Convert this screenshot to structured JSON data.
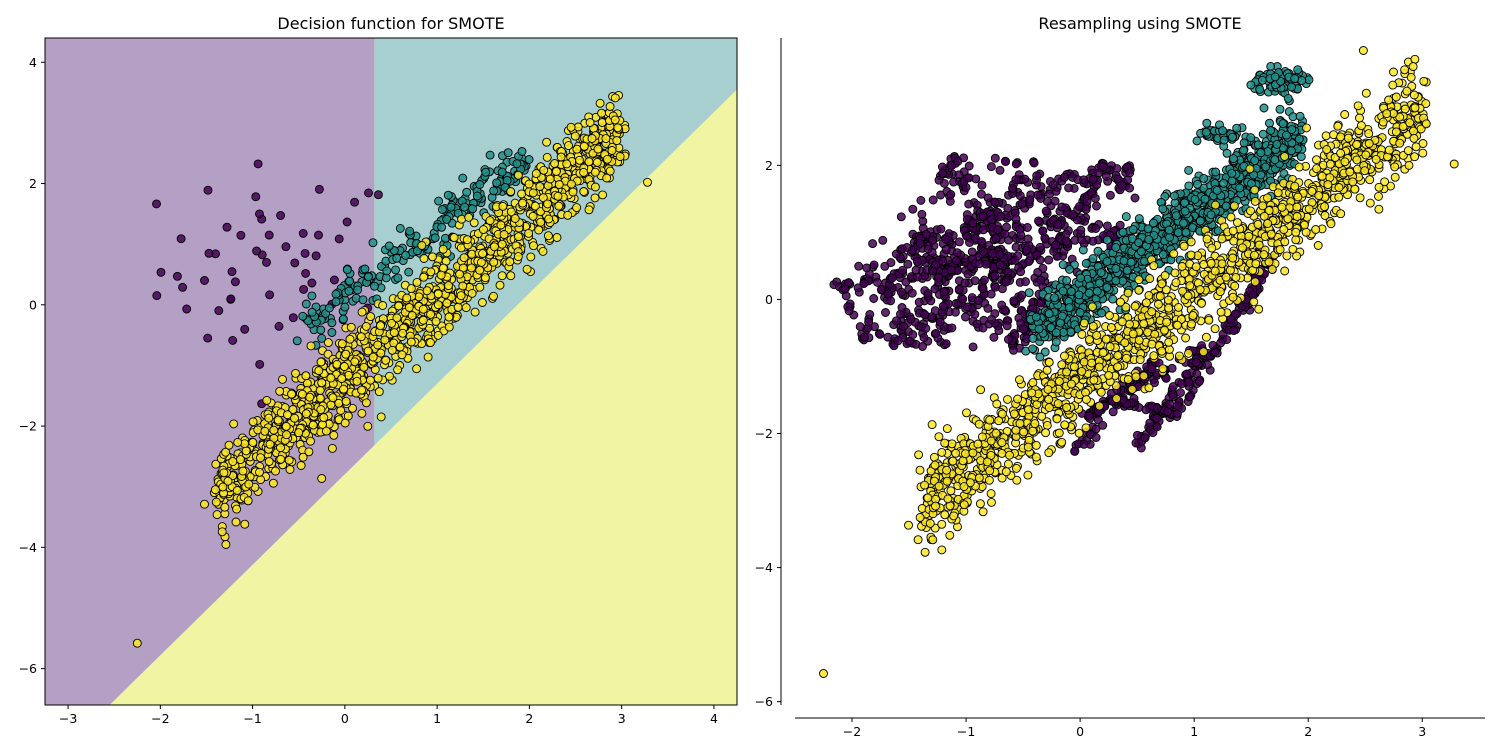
{
  "chart_data": [
    {
      "type": "scatter",
      "title": "Decision function for SMOTE",
      "xlim": [
        -3.25,
        4.25
      ],
      "ylim": [
        -6.6,
        4.4
      ],
      "xticks": [
        -3,
        -2,
        -1,
        0,
        1,
        2,
        3,
        4
      ],
      "yticks": [
        -6,
        -4,
        -2,
        0,
        2,
        4
      ],
      "background_regions": [
        {
          "class": 0,
          "color": "#b4a0c5",
          "description": "purple region left of x≈0.32 and above boundary"
        },
        {
          "class": 1,
          "color": "#a8cfd0",
          "description": "teal region x>0.32, above y≈x-0.8"
        },
        {
          "class": 2,
          "color": "#f1f4a2",
          "description": "yellow region below boundary line"
        }
      ],
      "boundaries": {
        "purple_teal_x": 0.32,
        "yellow_line": {
          "x0": -2.55,
          "y0": -6.6,
          "x1": 4.25,
          "y1": 3.55
        }
      },
      "series": [
        {
          "class": 0,
          "color": "#440154",
          "shape": "cluster",
          "center": [
            -0.7,
            0.6
          ],
          "spread": [
            0.65,
            0.85
          ],
          "count": 55
        },
        {
          "class": 1,
          "color": "#21918c",
          "shape": "band",
          "x_range": [
            -0.4,
            1.95
          ],
          "slope": 1.2,
          "intercept": 0.1,
          "spread": 0.18,
          "count": 220
        },
        {
          "class": 2,
          "color": "#fde725",
          "shape": "band",
          "x_range": [
            -1.4,
            3.0
          ],
          "slope": 1.35,
          "intercept": -1.2,
          "spread": 0.35,
          "count": 1400
        },
        {
          "class": 2,
          "color": "#fde725",
          "shape": "points",
          "points": [
            [
              -2.25,
              -5.58
            ],
            [
              3.28,
              2.02
            ],
            [
              2.93,
              3.05
            ]
          ]
        }
      ]
    },
    {
      "type": "scatter",
      "title": "Resampling using SMOTE",
      "xlim": [
        -2.5,
        3.55
      ],
      "ylim": [
        -6.05,
        3.9
      ],
      "xticks": [
        -2,
        -1,
        0,
        1,
        2,
        3
      ],
      "yticks": [
        -6,
        -4,
        -2,
        0,
        2
      ],
      "spines": "left-bottom",
      "series": [
        {
          "class": 0,
          "color": "#440154",
          "shape": "interpolated-web",
          "anchors": [
            [
              -2.1,
              0.2
            ],
            [
              -1.4,
              0.9
            ],
            [
              -1.1,
              2.1
            ],
            [
              -0.5,
              1.8
            ],
            [
              0.2,
              2.0
            ],
            [
              0.45,
              1.95
            ],
            [
              -0.8,
              1.3
            ],
            [
              -1.2,
              0.45
            ],
            [
              -0.5,
              -0.3
            ],
            [
              -0.55,
              -0.7
            ],
            [
              -0.1,
              -0.2
            ],
            [
              -1.6,
              -0.65
            ],
            [
              -0.95,
              1.05
            ],
            [
              0.0,
              1.2
            ],
            [
              -0.2,
              0.85
            ],
            [
              0.35,
              0.95
            ],
            [
              -1.7,
              0.2
            ],
            [
              -1.15,
              -0.4
            ],
            [
              -0.7,
              0.5
            ],
            [
              -1.9,
              -0.55
            ]
          ],
          "count": 900
        },
        {
          "class": 0,
          "color": "#440154",
          "shape": "interpolated-zigzag",
          "anchors": [
            [
              -0.05,
              -2.3
            ],
            [
              0.7,
              -0.9
            ],
            [
              0.05,
              -1.75
            ],
            [
              1.1,
              -0.7
            ],
            [
              0.5,
              -2.2
            ],
            [
              1.4,
              -0.2
            ],
            [
              1.7,
              0.65
            ],
            [
              0.85,
              -1.7
            ],
            [
              0.3,
              -1.5
            ]
          ],
          "count": 320
        },
        {
          "class": 1,
          "color": "#21918c",
          "shape": "band",
          "x_range": [
            -0.4,
            1.95
          ],
          "slope": 1.25,
          "intercept": 0.05,
          "spread": 0.22,
          "count": 1100
        },
        {
          "class": 1,
          "color": "#21918c",
          "shape": "cluster",
          "center": [
            1.75,
            3.25
          ],
          "spread": [
            0.12,
            0.1
          ],
          "count": 90
        },
        {
          "class": 1,
          "color": "#21918c",
          "shape": "cluster",
          "center": [
            1.3,
            2.45
          ],
          "spread": [
            0.12,
            0.06
          ],
          "count": 50
        },
        {
          "class": 2,
          "color": "#fde725",
          "shape": "band",
          "x_range": [
            -1.4,
            3.0
          ],
          "slope": 1.35,
          "intercept": -1.2,
          "spread": 0.35,
          "count": 1400
        },
        {
          "class": 2,
          "color": "#fde725",
          "shape": "points",
          "points": [
            [
              -2.25,
              -5.58
            ],
            [
              3.28,
              2.02
            ],
            [
              2.93,
              3.05
            ]
          ]
        }
      ]
    }
  ]
}
